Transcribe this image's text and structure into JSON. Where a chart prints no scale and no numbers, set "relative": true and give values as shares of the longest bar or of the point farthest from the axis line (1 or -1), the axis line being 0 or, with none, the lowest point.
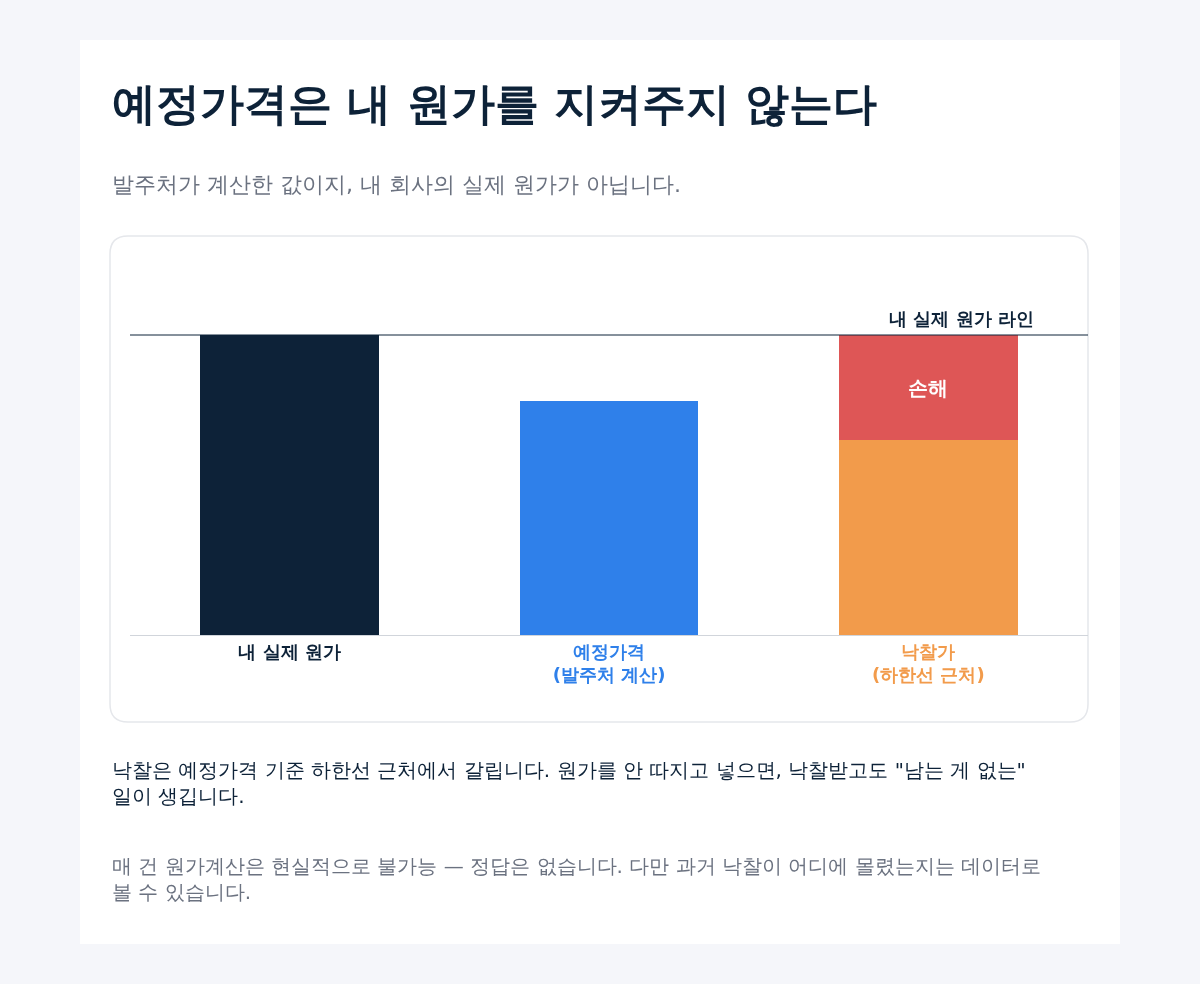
{
  "chart_data": {
    "type": "bar",
    "stacked": true,
    "relative": true,
    "title": "예정가격은 내 원가를 지켜주지 않는다",
    "subtitle": "발주처가 계산한 값이지, 내 회사의 실제 원가가 아닙니다.",
    "categories": [
      "내 실제 원가",
      "예정가격\n(발주처 계산)",
      "낙찰가\n(하한선 근처)"
    ],
    "series": [
      {
        "colors": [
          "#0d2238",
          "#2f80ea",
          "#f29b4b"
        ],
        "values": [
          1,
          0.78,
          0.65
        ]
      },
      {
        "name": "손해",
        "color": "#de5656",
        "values": [
          null,
          null,
          0.35
        ]
      }
    ],
    "ref_lines": [
      {
        "axis": "y",
        "value": 1,
        "label": "내 실제 원가 라인",
        "color": "#0d2238"
      }
    ],
    "annotations": [
      "낙찰은 예정가격 기준 하한선 근처에서 갈립니다. 원가를 안 따지고 넣으면, 낙찰받고도 \"남는 게 없는\" 일이 생깁니다.",
      "매 건 원가계산은 현실적으로 불가능 — 정답은 없습니다. 다만 과거 낙찰이 어디에 몰렸는지는 데이터로 볼 수 있습니다."
    ],
    "legend": false
  }
}
